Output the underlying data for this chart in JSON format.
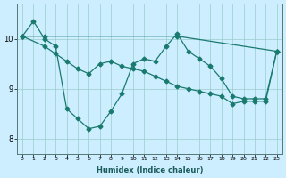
{
  "xlabel": "Humidex (Indice chaleur)",
  "bg_color": "#cceeff",
  "line_color": "#1a7a6e",
  "grid_color": "#99cccc",
  "xlim": [
    -0.5,
    23.5
  ],
  "ylim": [
    7.7,
    10.7
  ],
  "yticks": [
    8,
    9,
    10
  ],
  "xticks": [
    0,
    1,
    2,
    3,
    4,
    5,
    6,
    7,
    8,
    9,
    10,
    11,
    12,
    13,
    14,
    15,
    16,
    17,
    18,
    19,
    20,
    21,
    22,
    23
  ],
  "series1_x": [
    0,
    1,
    2,
    3,
    4,
    5,
    6,
    7,
    8,
    9,
    10,
    11,
    12,
    13,
    14,
    15,
    16,
    17,
    18,
    19,
    20,
    21,
    22,
    23
  ],
  "series1_y": [
    10.05,
    10.35,
    10.0,
    9.85,
    8.6,
    8.4,
    8.2,
    8.25,
    8.55,
    8.9,
    9.5,
    9.6,
    9.55,
    9.85,
    10.1,
    9.75,
    9.6,
    9.45,
    9.2,
    8.85,
    8.8,
    8.8,
    8.8,
    9.75
  ],
  "series2_x": [
    0,
    2,
    3,
    4,
    5,
    6,
    7,
    8,
    9,
    10,
    11,
    12,
    13,
    14,
    15,
    16,
    17,
    18,
    19,
    20,
    21,
    22,
    23
  ],
  "series2_y": [
    10.05,
    9.85,
    9.7,
    9.55,
    9.4,
    9.3,
    9.5,
    9.55,
    9.45,
    9.4,
    9.35,
    9.25,
    9.15,
    9.05,
    9.0,
    8.95,
    8.9,
    8.85,
    8.7,
    8.75,
    8.75,
    8.75,
    9.75
  ],
  "series3_x": [
    0,
    2,
    14,
    23
  ],
  "series3_y": [
    10.05,
    10.05,
    10.05,
    9.75
  ],
  "marker_size": 2.5,
  "linewidth": 0.9
}
